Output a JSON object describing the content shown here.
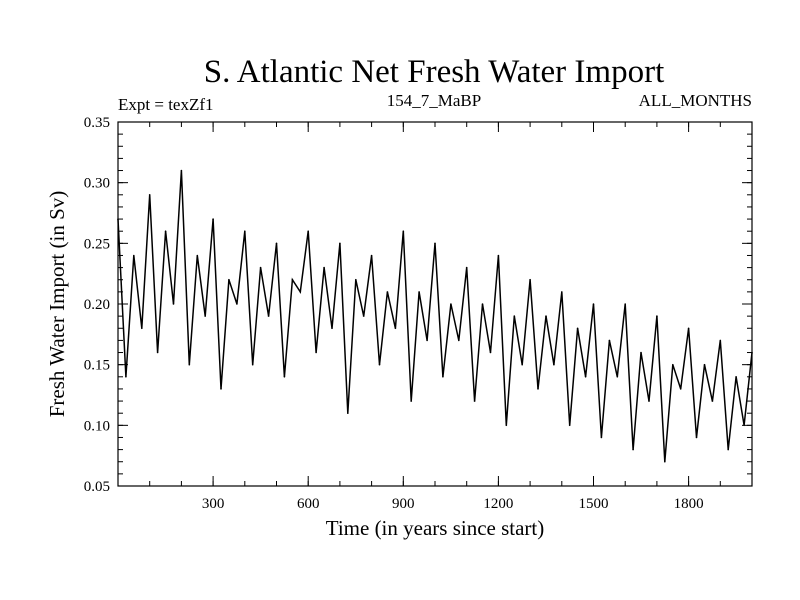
{
  "chart_data": {
    "type": "line",
    "title": "S. Atlantic Net Fresh Water Import",
    "subtitle_left": "Expt = texZf1",
    "subtitle_center": "154_7_MaBP",
    "subtitle_right": "ALL_MONTHS",
    "xlabel": "Time (in years since start)",
    "ylabel": "Fresh Water Import (in Sv)",
    "xlim": [
      0,
      2000
    ],
    "ylim": [
      0.05,
      0.35
    ],
    "xticks": [
      300,
      600,
      900,
      1200,
      1500,
      1800
    ],
    "xtick_labels": [
      "300",
      "600",
      "900",
      "1200",
      "1500",
      "1800"
    ],
    "yticks": [
      0.05,
      0.1,
      0.15,
      0.2,
      0.25,
      0.3,
      0.35
    ],
    "ytick_labels": [
      "0.05",
      "0.10",
      "0.15",
      "0.20",
      "0.25",
      "0.30",
      "0.35"
    ],
    "line_color": "#000000",
    "series": [
      {
        "name": "fresh water import",
        "x": [
          0,
          25,
          50,
          75,
          100,
          125,
          150,
          175,
          200,
          225,
          250,
          275,
          300,
          325,
          350,
          375,
          400,
          425,
          450,
          475,
          500,
          525,
          550,
          575,
          600,
          625,
          650,
          675,
          700,
          725,
          750,
          775,
          800,
          825,
          850,
          875,
          900,
          925,
          950,
          975,
          1000,
          1025,
          1050,
          1075,
          1100,
          1125,
          1150,
          1175,
          1200,
          1225,
          1250,
          1275,
          1300,
          1325,
          1350,
          1375,
          1400,
          1425,
          1450,
          1475,
          1500,
          1525,
          1550,
          1575,
          1600,
          1625,
          1650,
          1675,
          1700,
          1725,
          1750,
          1775,
          1800,
          1825,
          1850,
          1875,
          1900,
          1925,
          1950,
          1975,
          2000
        ],
        "values": [
          0.27,
          0.14,
          0.24,
          0.18,
          0.29,
          0.16,
          0.26,
          0.2,
          0.31,
          0.15,
          0.24,
          0.19,
          0.27,
          0.13,
          0.22,
          0.2,
          0.26,
          0.15,
          0.23,
          0.19,
          0.25,
          0.14,
          0.22,
          0.21,
          0.26,
          0.16,
          0.23,
          0.18,
          0.25,
          0.11,
          0.22,
          0.19,
          0.24,
          0.15,
          0.21,
          0.18,
          0.26,
          0.12,
          0.21,
          0.17,
          0.25,
          0.14,
          0.2,
          0.17,
          0.23,
          0.12,
          0.2,
          0.16,
          0.24,
          0.1,
          0.19,
          0.15,
          0.22,
          0.13,
          0.19,
          0.15,
          0.21,
          0.1,
          0.18,
          0.14,
          0.2,
          0.09,
          0.17,
          0.14,
          0.2,
          0.08,
          0.16,
          0.12,
          0.19,
          0.07,
          0.15,
          0.13,
          0.18,
          0.09,
          0.15,
          0.12,
          0.17,
          0.08,
          0.14,
          0.1,
          0.16
        ]
      }
    ]
  }
}
